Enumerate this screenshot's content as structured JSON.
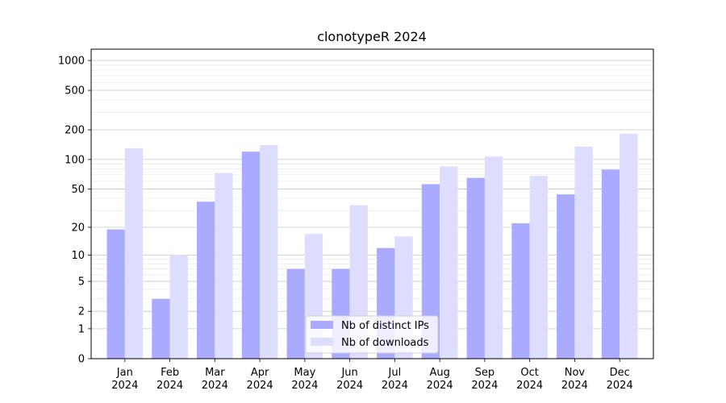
{
  "chart_data": {
    "type": "bar",
    "title": "clonotypeR 2024",
    "xlabel": "",
    "ylabel": "",
    "yscale": "symlog",
    "ylim": [
      0,
      1300
    ],
    "yticks": [
      0,
      1,
      2,
      5,
      10,
      20,
      50,
      100,
      200,
      500,
      1000
    ],
    "categories": [
      [
        "Jan",
        "2024"
      ],
      [
        "Feb",
        "2024"
      ],
      [
        "Mar",
        "2024"
      ],
      [
        "Apr",
        "2024"
      ],
      [
        "May",
        "2024"
      ],
      [
        "Jun",
        "2024"
      ],
      [
        "Jul",
        "2024"
      ],
      [
        "Aug",
        "2024"
      ],
      [
        "Sep",
        "2024"
      ],
      [
        "Oct",
        "2024"
      ],
      [
        "Nov",
        "2024"
      ],
      [
        "Dec",
        "2024"
      ]
    ],
    "series": [
      {
        "name": "Nb of distinct IPs",
        "color": "#aaaaff",
        "values": [
          19,
          3,
          37,
          120,
          7,
          7,
          12,
          56,
          65,
          22,
          44,
          79
        ]
      },
      {
        "name": "Nb of downloads",
        "color": "#ddddff",
        "values": [
          130,
          10,
          73,
          140,
          17,
          34,
          16,
          85,
          107,
          68,
          135,
          183
        ]
      }
    ],
    "grid": "horizontal",
    "legend_position": "lower-center"
  }
}
